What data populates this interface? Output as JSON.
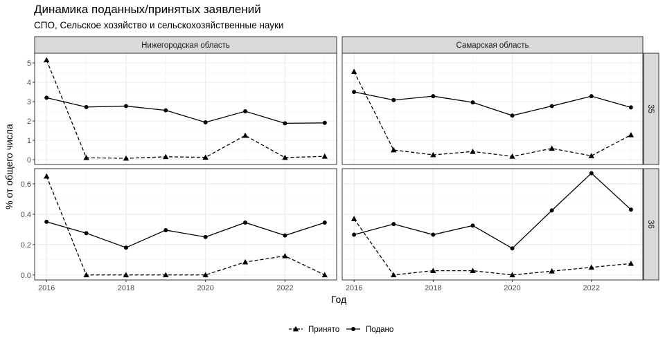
{
  "chart_data": {
    "type": "line",
    "title": "Динамика поданных/принятых заявлений",
    "subtitle": "СПО, Сельское хозяйство и сельскохозяйственные науки",
    "xlabel": "Год",
    "ylabel": "% от общего числа",
    "x": [
      2016,
      2017,
      2018,
      2019,
      2020,
      2021,
      2022,
      2023
    ],
    "xlim": [
      2015.7,
      2023.3
    ],
    "xticks": [
      2016,
      2018,
      2020,
      2022
    ],
    "columns": [
      "Нижегородская область",
      "Самарская область"
    ],
    "rows": [
      "35",
      "36"
    ],
    "legend_position": "bottom",
    "legend": [
      {
        "name": "Принято",
        "shape": "triangle",
        "linetype": "dashed"
      },
      {
        "name": "Подано",
        "shape": "circle",
        "linetype": "solid"
      }
    ],
    "row_scales": [
      {
        "ylim": [
          -0.25,
          5.5
        ],
        "yticks": [
          0,
          1,
          2,
          3,
          4,
          5
        ]
      },
      {
        "ylim": [
          -0.033,
          0.7
        ],
        "yticks": [
          0.0,
          0.2,
          0.4,
          0.6
        ]
      }
    ],
    "panels": [
      {
        "row": 0,
        "col": 0,
        "series": [
          {
            "name": "Принято",
            "values": [
              5.15,
              0.1,
              0.07,
              0.15,
              0.12,
              1.25,
              0.11,
              0.17
            ]
          },
          {
            "name": "Подано",
            "values": [
              3.2,
              2.72,
              2.77,
              2.55,
              1.93,
              2.5,
              1.88,
              1.9
            ]
          }
        ]
      },
      {
        "row": 0,
        "col": 1,
        "series": [
          {
            "name": "Принято",
            "values": [
              4.55,
              0.5,
              0.25,
              0.42,
              0.17,
              0.58,
              0.2,
              1.28
            ]
          },
          {
            "name": "Подано",
            "values": [
              3.5,
              3.08,
              3.28,
              2.96,
              2.28,
              2.77,
              3.28,
              2.7
            ]
          }
        ]
      },
      {
        "row": 1,
        "col": 0,
        "series": [
          {
            "name": "Принято",
            "values": [
              0.65,
              0.0,
              0.0,
              0.0,
              0.0,
              0.085,
              0.125,
              0.0
            ]
          },
          {
            "name": "Подано",
            "values": [
              0.35,
              0.275,
              0.18,
              0.295,
              0.25,
              0.345,
              0.26,
              0.345
            ]
          }
        ]
      },
      {
        "row": 1,
        "col": 1,
        "series": [
          {
            "name": "Принято",
            "values": [
              0.37,
              0.0,
              0.028,
              0.028,
              0.0,
              0.025,
              0.05,
              0.075
            ]
          },
          {
            "name": "Подано",
            "values": [
              0.265,
              0.335,
              0.265,
              0.325,
              0.175,
              0.425,
              0.67,
              0.43
            ]
          }
        ]
      }
    ],
    "grid": true
  }
}
